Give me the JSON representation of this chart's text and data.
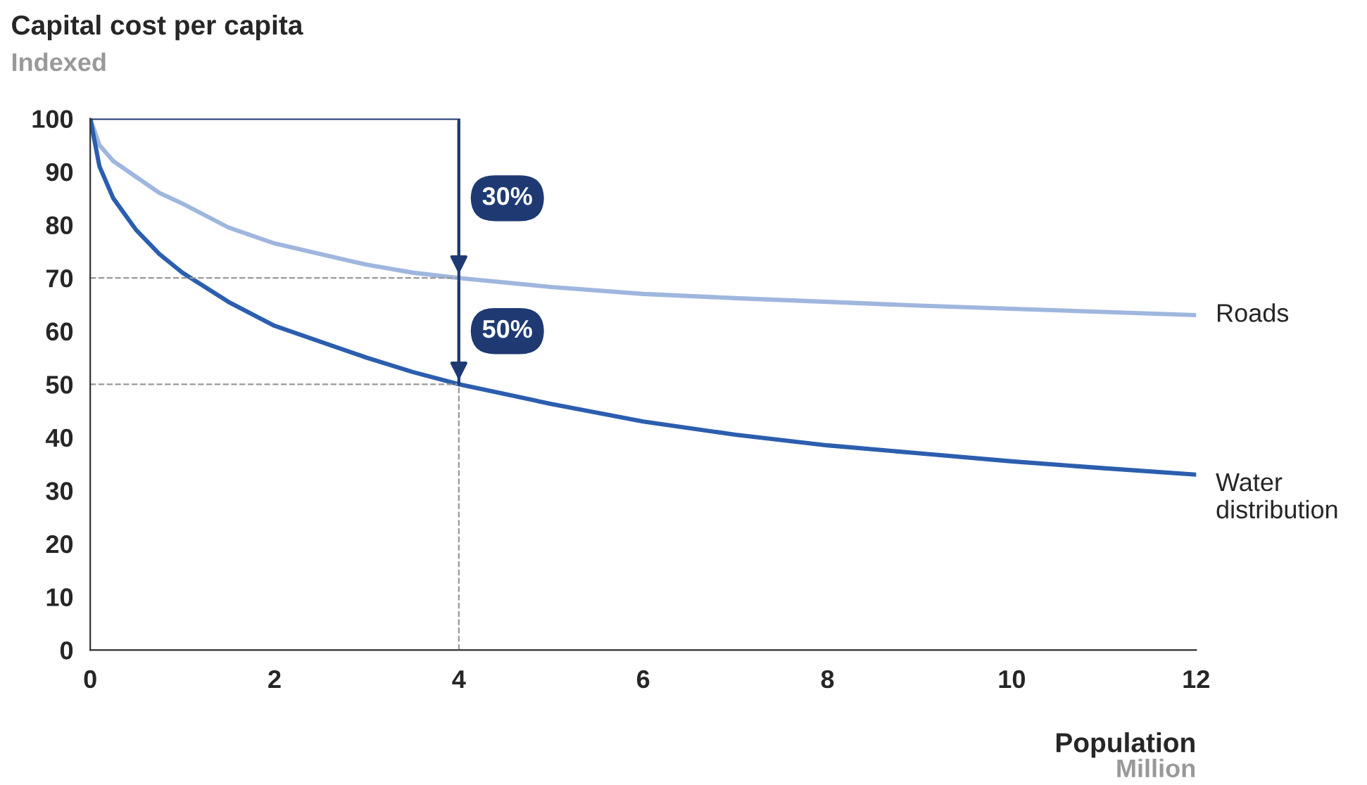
{
  "chart_data": {
    "type": "line",
    "title": "Capital cost per capita",
    "subtitle": "Indexed",
    "xlabel": "Population",
    "x": [
      0,
      0.1,
      0.25,
      0.5,
      0.75,
      1,
      1.5,
      2,
      2.5,
      3,
      3.5,
      4,
      5,
      6,
      7,
      8,
      9,
      10,
      11,
      12
    ],
    "series": [
      {
        "name": "Roads",
        "color": "#9fb6de",
        "values": [
          100,
          95,
          92,
          89,
          86,
          84,
          79.5,
          76.5,
          74.5,
          72.5,
          71,
          70,
          68.3,
          67,
          66.2,
          65.5,
          64.8,
          64.2,
          63.6,
          63
        ]
      },
      {
        "name": "Water distribution",
        "color": "#2b5eae",
        "values": [
          100,
          91,
          85,
          79,
          74.5,
          71,
          65.5,
          61,
          58,
          55,
          52.3,
          50,
          46.3,
          43,
          40.5,
          38.5,
          37,
          35.5,
          34.2,
          33
        ]
      }
    ],
    "annotations": [
      "30%",
      "50%",
      "Million"
    ],
    "ref_lines": [
      {
        "axis": "x",
        "value": 4,
        "color": "#999999",
        "line_style": "dashed"
      },
      {
        "axis": "y",
        "value": 70,
        "color": "#999999",
        "line_style": "dashed"
      },
      {
        "axis": "y",
        "value": 50,
        "color": "#999999",
        "line_style": "dashed"
      }
    ],
    "xlim": [
      0,
      12
    ],
    "xticks": [
      0,
      2,
      4,
      6,
      8,
      10,
      12
    ],
    "ylim": [
      0,
      100
    ],
    "yticks": [
      0,
      10,
      20,
      30,
      40,
      50,
      60,
      70,
      80,
      90,
      100
    ],
    "grid": false,
    "legend": false,
    "marker": "none",
    "line_style": "solid"
  }
}
